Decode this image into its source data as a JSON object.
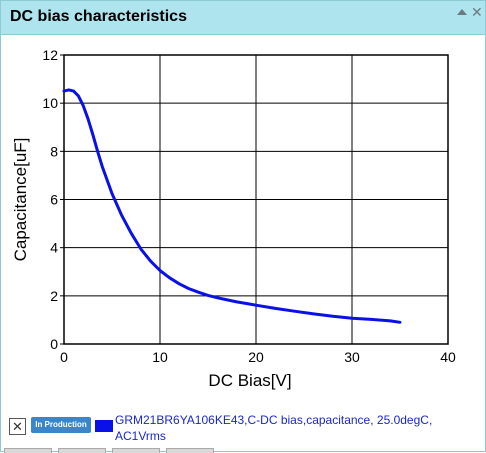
{
  "window": {
    "title": "DC bias characteristics"
  },
  "legend": {
    "checkbox_glyph": "✕",
    "badge_text": "In Production",
    "series_text": "GRM21BR6YA106KE43,C-DC bias,capacitance, 25.0degC, AC1Vrms",
    "series_color": "#0a10e8"
  },
  "chart_data": {
    "type": "line",
    "xlabel": "DC Bias[V]",
    "ylabel": "Capacitance[uF]",
    "xlim": [
      0,
      40
    ],
    "ylim": [
      0,
      12
    ],
    "xticks": [
      "0",
      "10",
      "20",
      "30",
      "40"
    ],
    "yticks": [
      "0",
      "2",
      "4",
      "6",
      "8",
      "10",
      "12"
    ],
    "grid": true,
    "series": [
      {
        "name": "GRM21BR6YA106KE43,C-DC bias,capacitance, 25.0degC, AC1Vrms",
        "color": "#0a10e8",
        "x": [
          0,
          0.5,
          1,
          1.5,
          2,
          2.5,
          3,
          3.5,
          4,
          5,
          6,
          7,
          8,
          9,
          10,
          11,
          12,
          13,
          14,
          15,
          16,
          17,
          18,
          19,
          20,
          22,
          24,
          26,
          28,
          30,
          32,
          34,
          35
        ],
        "y": [
          10.5,
          10.55,
          10.5,
          10.3,
          9.9,
          9.35,
          8.7,
          8.0,
          7.35,
          6.25,
          5.35,
          4.6,
          3.95,
          3.45,
          3.05,
          2.75,
          2.5,
          2.3,
          2.15,
          2.02,
          1.92,
          1.83,
          1.75,
          1.68,
          1.61,
          1.48,
          1.36,
          1.25,
          1.15,
          1.07,
          1.02,
          0.96,
          0.9
        ]
      }
    ]
  }
}
